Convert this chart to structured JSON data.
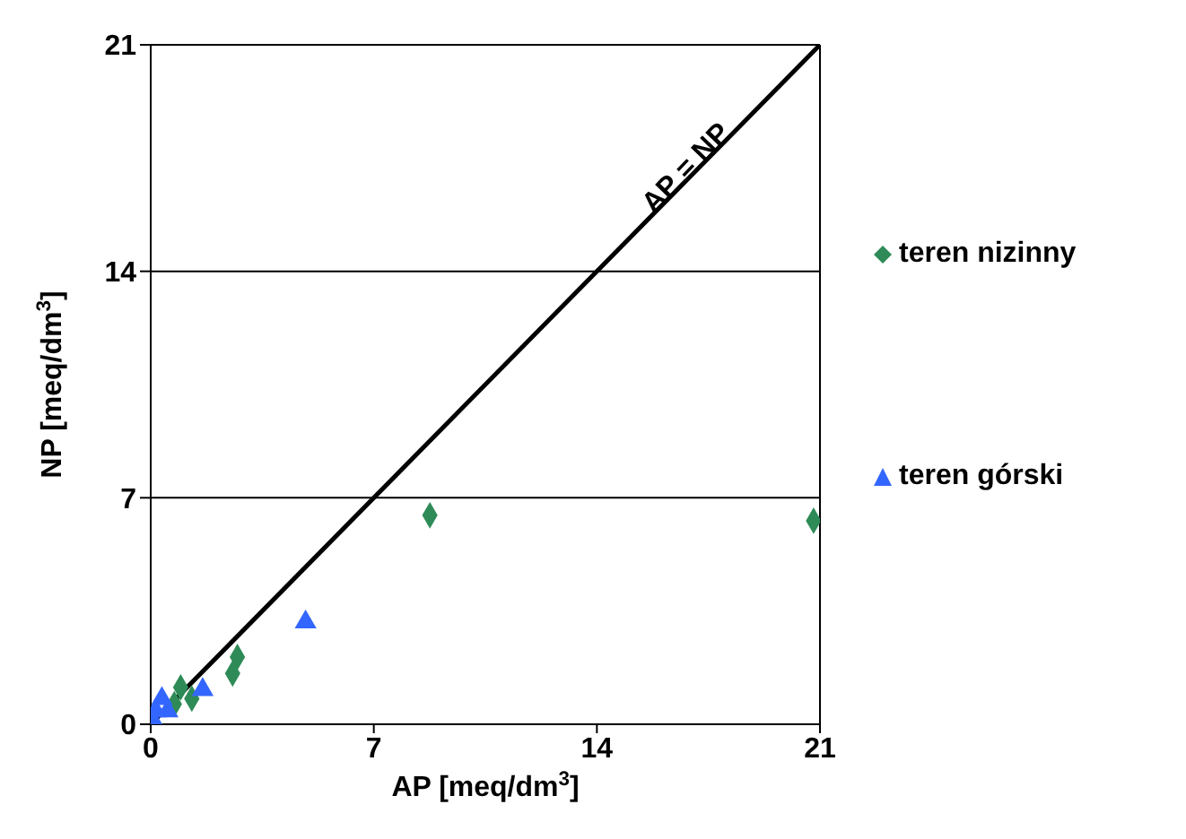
{
  "chart_data": {
    "type": "scatter",
    "xlabel": "AP [meq/dm$^{3}$]",
    "ylabel": "NP [meq/dm$^{3}$]",
    "xlim": [
      0,
      21
    ],
    "ylim": [
      0,
      21
    ],
    "xticks": [
      0,
      7,
      14,
      21
    ],
    "yticks": [
      0,
      7,
      14,
      21
    ],
    "grid": "y",
    "legend": "right",
    "annotations": [
      {
        "text": "AP = NP",
        "x": 17,
        "y": 17
      }
    ],
    "series": [
      {
        "name": "teren nizinny",
        "color": "#2e8b57",
        "marker": "diamond",
        "x": [
          8.76,
          20.8,
          2.72,
          2.57,
          0.94,
          1.29,
          0.74
        ],
        "values": [
          6.46,
          6.29,
          2.08,
          1.57,
          1.14,
          0.79,
          0.62
        ]
      },
      {
        "name": "teren górski",
        "color": "#3366ff",
        "marker": "triangle",
        "x": [
          4.86,
          1.63,
          0.35,
          0.16,
          0.06,
          0.53
        ],
        "values": [
          3.16,
          1.07,
          0.79,
          0.41,
          0.13,
          0.41
        ]
      },
      {
        "type": "line",
        "color": "#000000",
        "x": [
          0,
          21
        ],
        "values": [
          0,
          21
        ]
      }
    ]
  }
}
